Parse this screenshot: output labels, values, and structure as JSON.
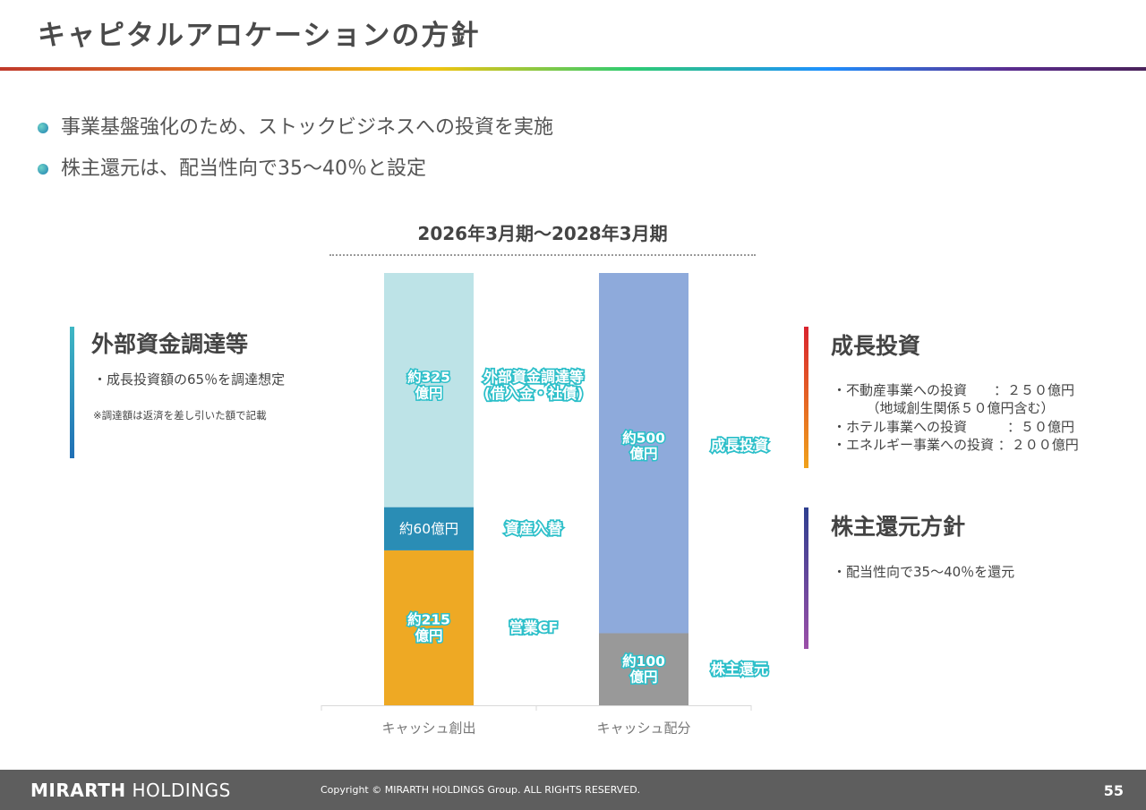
{
  "title": "キャピタルアロケーションの方針",
  "bullets": [
    "事業基盤強化のため、ストックビジネスへの投資を実施",
    "株主還元は、配当性向で35〜40％と設定"
  ],
  "period": "2026年3月期〜2028年3月期",
  "left_box": {
    "title": "外部資金調達等",
    "text": "・成長投資額の65％を調達想定",
    "note": "※調達額は返済を差し引いた額で記載",
    "color_top": "#3fb7c4",
    "color_bottom": "#1f6fb5"
  },
  "right_box_1": {
    "title": "成長投資",
    "lines": [
      "・不動産事業への投資　　：２５０億円",
      "　　　（地域創生関係５０億円含む）",
      "・ホテル事業への投資　　　：５０億円",
      "・エネルギー事業への投資 ：２００億円"
    ],
    "color_top": "#d9232e",
    "color_bottom": "#f0a21b"
  },
  "right_box_2": {
    "title": "株主還元方針",
    "text": "・配当性向で35〜40％を還元",
    "color_top": "#2e3f8f",
    "color_bottom": "#9b4fa8"
  },
  "chart_data": {
    "type": "bar",
    "stacked": true,
    "categories": [
      "キャッシュ創出",
      "キャッシュ配分"
    ],
    "ylim": [
      0,
      600
    ],
    "stacks": [
      {
        "category": "キャッシュ創出",
        "segments": [
          {
            "value": 215,
            "bar_label": [
              "約215",
              "億円"
            ],
            "side_label": [
              "営業CF"
            ],
            "color": "#eea924",
            "label_style": "outline"
          },
          {
            "value": 60,
            "bar_label": [
              "約60億円"
            ],
            "side_label": [
              "資産入替"
            ],
            "color": "#2a8db5",
            "label_style": "white"
          },
          {
            "value": 325,
            "bar_label": [
              "約325",
              "億円"
            ],
            "side_label": [
              "外部資金調達等",
              "(借入金・社債)"
            ],
            "color": "#bde3e7",
            "label_style": "outline"
          }
        ]
      },
      {
        "category": "キャッシュ配分",
        "segments": [
          {
            "value": 100,
            "bar_label": [
              "約100",
              "億円"
            ],
            "side_label": [
              "株主還元"
            ],
            "color": "#999999",
            "label_style": "outline"
          },
          {
            "value": 500,
            "bar_label": [
              "約500",
              "億円"
            ],
            "side_label": [
              "成長投資"
            ],
            "color": "#8eaadb",
            "label_style": "outline"
          }
        ]
      }
    ]
  },
  "footer": {
    "logo_bold": "MIRARTH",
    "logo_rest": " HOLDINGS",
    "copyright": "Copyright © MIRARTH HOLDINGS Group. ALL RIGHTS RESERVED.",
    "page": "55"
  }
}
